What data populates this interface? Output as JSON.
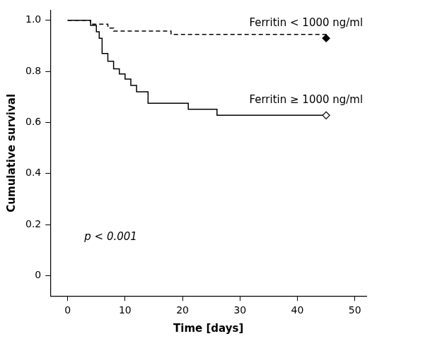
{
  "chart_data": {
    "type": "line",
    "x_label": "Time [days]",
    "y_label": "Cumulative survival",
    "annotations": [
      {
        "text": "p < 0.001"
      }
    ],
    "xlim": [
      -3,
      52
    ],
    "xticks": [
      0,
      10,
      20,
      30,
      40,
      50
    ],
    "ylim": [
      -0.08,
      1.04
    ],
    "yticks": [
      0,
      0.2,
      0.4,
      0.6,
      0.8,
      {
        "value": 1,
        "label": "1.0"
      }
    ],
    "grid": false,
    "series": [
      {
        "name": "Ferritin < 1000 ng/ml",
        "color": "#000000",
        "line_style": "dashed",
        "marker": "diamond",
        "x": [
          0,
          4,
          7,
          8,
          18,
          45
        ],
        "values": [
          1.0,
          0.985,
          0.97,
          0.958,
          0.945,
          0.93
        ]
      },
      {
        "name": "Ferritin ≥ 1000 ng/ml",
        "color": "#000000",
        "line_style": "solid",
        "marker": "diamond-open",
        "x": [
          0,
          4,
          5,
          5.5,
          6,
          7,
          8,
          9,
          10,
          11,
          12,
          14,
          21,
          26,
          45
        ],
        "values": [
          1.0,
          0.98,
          0.955,
          0.93,
          0.87,
          0.84,
          0.81,
          0.79,
          0.77,
          0.745,
          0.72,
          0.675,
          0.652,
          0.628,
          0.628
        ]
      }
    ]
  }
}
